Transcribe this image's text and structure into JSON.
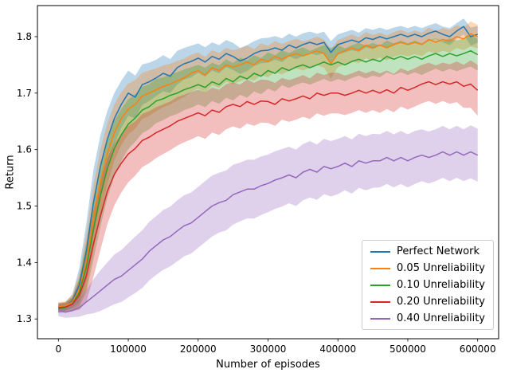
{
  "chart_data": {
    "type": "line",
    "title": "",
    "xlabel": "Number of episodes",
    "ylabel": "Return",
    "xlim": [
      -30000,
      630000
    ],
    "ylim": [
      1.265,
      1.855
    ],
    "xticks": [
      0,
      100000,
      200000,
      300000,
      400000,
      500000,
      600000
    ],
    "yticks": [
      1.3,
      1.4,
      1.5,
      1.6,
      1.7,
      1.8
    ],
    "grid": false,
    "legend_position": "lower right",
    "band_alpha": 0.3,
    "x": [
      0,
      10000,
      20000,
      30000,
      40000,
      50000,
      60000,
      70000,
      80000,
      90000,
      100000,
      110000,
      120000,
      130000,
      140000,
      150000,
      160000,
      170000,
      180000,
      190000,
      200000,
      210000,
      220000,
      230000,
      240000,
      250000,
      260000,
      270000,
      280000,
      290000,
      300000,
      310000,
      320000,
      330000,
      340000,
      350000,
      360000,
      370000,
      380000,
      390000,
      400000,
      410000,
      420000,
      430000,
      440000,
      450000,
      460000,
      470000,
      480000,
      490000,
      500000,
      510000,
      520000,
      530000,
      540000,
      550000,
      560000,
      570000,
      580000,
      590000,
      600000
    ],
    "series": [
      {
        "name": "Perfect Network",
        "color": "#1f77b4",
        "mean": [
          1.32,
          1.322,
          1.332,
          1.36,
          1.42,
          1.505,
          1.57,
          1.618,
          1.655,
          1.68,
          1.7,
          1.693,
          1.715,
          1.72,
          1.727,
          1.735,
          1.73,
          1.745,
          1.752,
          1.756,
          1.762,
          1.755,
          1.765,
          1.76,
          1.77,
          1.765,
          1.757,
          1.762,
          1.77,
          1.775,
          1.776,
          1.78,
          1.776,
          1.785,
          1.78,
          1.786,
          1.79,
          1.786,
          1.79,
          1.772,
          1.786,
          1.79,
          1.794,
          1.79,
          1.798,
          1.795,
          1.8,
          1.796,
          1.8,
          1.804,
          1.8,
          1.804,
          1.8,
          1.806,
          1.81,
          1.804,
          1.8,
          1.81,
          1.818,
          1.8,
          1.804
        ],
        "band": [
          0.008,
          0.008,
          0.012,
          0.03,
          0.05,
          0.058,
          0.055,
          0.05,
          0.045,
          0.042,
          0.04,
          0.038,
          0.036,
          0.034,
          0.032,
          0.032,
          0.03,
          0.03,
          0.028,
          0.028,
          0.026,
          0.026,
          0.025,
          0.025,
          0.024,
          0.024,
          0.023,
          0.023,
          0.022,
          0.022,
          0.022,
          0.021,
          0.021,
          0.02,
          0.02,
          0.02,
          0.019,
          0.019,
          0.019,
          0.02,
          0.018,
          0.018,
          0.018,
          0.017,
          0.017,
          0.017,
          0.016,
          0.016,
          0.016,
          0.015,
          0.015,
          0.015,
          0.015,
          0.014,
          0.014,
          0.014,
          0.015,
          0.014,
          0.014,
          0.016,
          0.015
        ]
      },
      {
        "name": "0.05 Unreliability",
        "color": "#ff7f0e",
        "mean": [
          1.322,
          1.323,
          1.33,
          1.352,
          1.402,
          1.478,
          1.542,
          1.592,
          1.63,
          1.655,
          1.672,
          1.68,
          1.695,
          1.7,
          1.706,
          1.712,
          1.716,
          1.722,
          1.727,
          1.735,
          1.74,
          1.732,
          1.745,
          1.74,
          1.75,
          1.746,
          1.75,
          1.755,
          1.75,
          1.76,
          1.756,
          1.765,
          1.76,
          1.766,
          1.77,
          1.766,
          1.77,
          1.775,
          1.77,
          1.752,
          1.77,
          1.775,
          1.78,
          1.776,
          1.785,
          1.78,
          1.785,
          1.78,
          1.786,
          1.79,
          1.786,
          1.79,
          1.786,
          1.795,
          1.79,
          1.795,
          1.792,
          1.8,
          1.796,
          1.805,
          1.8
        ],
        "band": [
          0.008,
          0.008,
          0.012,
          0.028,
          0.048,
          0.058,
          0.058,
          0.054,
          0.05,
          0.047,
          0.045,
          0.043,
          0.041,
          0.04,
          0.038,
          0.037,
          0.036,
          0.035,
          0.034,
          0.033,
          0.032,
          0.032,
          0.031,
          0.031,
          0.03,
          0.03,
          0.029,
          0.029,
          0.028,
          0.028,
          0.028,
          0.027,
          0.027,
          0.026,
          0.026,
          0.026,
          0.025,
          0.025,
          0.025,
          0.026,
          0.024,
          0.024,
          0.024,
          0.023,
          0.023,
          0.023,
          0.022,
          0.022,
          0.022,
          0.022,
          0.021,
          0.021,
          0.021,
          0.021,
          0.02,
          0.02,
          0.02,
          0.02,
          0.02,
          0.022,
          0.021
        ]
      },
      {
        "name": "0.10 Unreliability",
        "color": "#2ca02c",
        "mean": [
          1.318,
          1.32,
          1.327,
          1.347,
          1.392,
          1.458,
          1.518,
          1.566,
          1.602,
          1.626,
          1.645,
          1.656,
          1.67,
          1.676,
          1.686,
          1.69,
          1.696,
          1.7,
          1.706,
          1.71,
          1.715,
          1.71,
          1.72,
          1.715,
          1.726,
          1.72,
          1.73,
          1.725,
          1.735,
          1.73,
          1.74,
          1.735,
          1.745,
          1.74,
          1.746,
          1.75,
          1.745,
          1.75,
          1.755,
          1.75,
          1.755,
          1.75,
          1.756,
          1.76,
          1.755,
          1.76,
          1.756,
          1.765,
          1.76,
          1.765,
          1.76,
          1.765,
          1.76,
          1.766,
          1.77,
          1.765,
          1.77,
          1.766,
          1.77,
          1.775,
          1.768
        ],
        "band": [
          0.008,
          0.008,
          0.012,
          0.026,
          0.044,
          0.054,
          0.055,
          0.052,
          0.049,
          0.046,
          0.044,
          0.042,
          0.041,
          0.04,
          0.039,
          0.038,
          0.037,
          0.037,
          0.036,
          0.036,
          0.035,
          0.035,
          0.034,
          0.034,
          0.034,
          0.033,
          0.033,
          0.033,
          0.032,
          0.032,
          0.032,
          0.032,
          0.031,
          0.031,
          0.031,
          0.031,
          0.03,
          0.03,
          0.03,
          0.03,
          0.03,
          0.029,
          0.029,
          0.029,
          0.029,
          0.029,
          0.028,
          0.028,
          0.028,
          0.028,
          0.028,
          0.028,
          0.028,
          0.028,
          0.027,
          0.027,
          0.027,
          0.027,
          0.027,
          0.028,
          0.028
        ]
      },
      {
        "name": "0.20 Unreliability",
        "color": "#d62728",
        "mean": [
          1.32,
          1.321,
          1.326,
          1.342,
          1.376,
          1.432,
          1.482,
          1.526,
          1.556,
          1.576,
          1.592,
          1.602,
          1.616,
          1.622,
          1.63,
          1.636,
          1.642,
          1.65,
          1.655,
          1.66,
          1.665,
          1.66,
          1.67,
          1.666,
          1.676,
          1.68,
          1.676,
          1.685,
          1.68,
          1.686,
          1.685,
          1.68,
          1.69,
          1.686,
          1.69,
          1.695,
          1.69,
          1.7,
          1.696,
          1.7,
          1.7,
          1.696,
          1.7,
          1.705,
          1.7,
          1.705,
          1.7,
          1.706,
          1.7,
          1.71,
          1.705,
          1.71,
          1.716,
          1.72,
          1.715,
          1.72,
          1.716,
          1.72,
          1.712,
          1.716,
          1.705
        ],
        "band": [
          0.008,
          0.008,
          0.012,
          0.026,
          0.046,
          0.058,
          0.06,
          0.058,
          0.055,
          0.052,
          0.05,
          0.048,
          0.047,
          0.046,
          0.045,
          0.044,
          0.043,
          0.043,
          0.042,
          0.042,
          0.041,
          0.041,
          0.04,
          0.04,
          0.04,
          0.039,
          0.039,
          0.039,
          0.038,
          0.038,
          0.038,
          0.038,
          0.037,
          0.037,
          0.037,
          0.037,
          0.036,
          0.036,
          0.036,
          0.036,
          0.036,
          0.035,
          0.035,
          0.035,
          0.035,
          0.035,
          0.035,
          0.034,
          0.034,
          0.034,
          0.034,
          0.034,
          0.034,
          0.034,
          0.034,
          0.034,
          0.035,
          0.036,
          0.038,
          0.042,
          0.045
        ]
      },
      {
        "name": "0.40 Unreliability",
        "color": "#9467bd",
        "mean": [
          1.315,
          1.312,
          1.315,
          1.32,
          1.33,
          1.34,
          1.35,
          1.36,
          1.37,
          1.376,
          1.386,
          1.396,
          1.406,
          1.42,
          1.43,
          1.44,
          1.446,
          1.456,
          1.465,
          1.47,
          1.48,
          1.49,
          1.5,
          1.506,
          1.51,
          1.52,
          1.525,
          1.53,
          1.53,
          1.536,
          1.54,
          1.546,
          1.55,
          1.555,
          1.55,
          1.56,
          1.565,
          1.56,
          1.57,
          1.566,
          1.57,
          1.576,
          1.57,
          1.58,
          1.576,
          1.58,
          1.58,
          1.586,
          1.58,
          1.586,
          1.58,
          1.586,
          1.59,
          1.586,
          1.59,
          1.596,
          1.59,
          1.596,
          1.59,
          1.596,
          1.59
        ],
        "band": [
          0.01,
          0.01,
          0.012,
          0.016,
          0.022,
          0.03,
          0.036,
          0.04,
          0.044,
          0.046,
          0.048,
          0.05,
          0.051,
          0.052,
          0.052,
          0.053,
          0.053,
          0.054,
          0.054,
          0.054,
          0.054,
          0.054,
          0.054,
          0.053,
          0.053,
          0.053,
          0.052,
          0.052,
          0.052,
          0.052,
          0.051,
          0.051,
          0.051,
          0.05,
          0.05,
          0.05,
          0.05,
          0.049,
          0.049,
          0.049,
          0.049,
          0.048,
          0.048,
          0.048,
          0.048,
          0.048,
          0.047,
          0.047,
          0.047,
          0.047,
          0.047,
          0.047,
          0.046,
          0.046,
          0.046,
          0.046,
          0.046,
          0.046,
          0.046,
          0.047,
          0.047
        ]
      }
    ]
  }
}
